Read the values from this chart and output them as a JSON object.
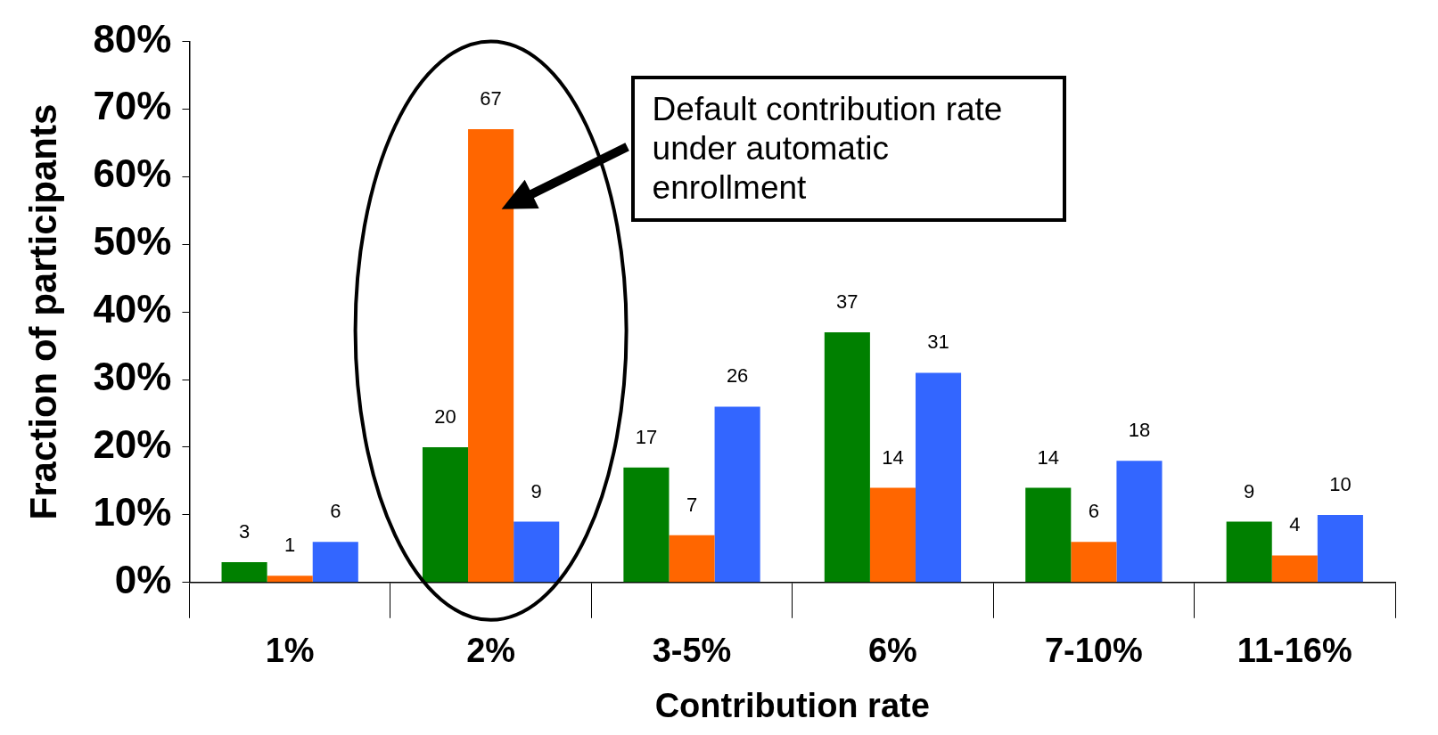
{
  "chart_data": {
    "type": "bar",
    "xlabel": "Contribution rate",
    "ylabel": "Fraction of participants",
    "categories": [
      "1%",
      "2%",
      "3-5%",
      "6%",
      "7-10%",
      "11-16%"
    ],
    "series": [
      {
        "color": "#008000",
        "values": [
          3,
          20,
          17,
          37,
          14,
          9
        ]
      },
      {
        "color": "#ff6600",
        "values": [
          1,
          67,
          7,
          14,
          6,
          4
        ]
      },
      {
        "color": "#3366ff",
        "values": [
          6,
          9,
          26,
          31,
          18,
          10
        ]
      }
    ],
    "ylim": [
      0,
      80
    ],
    "yticks": [
      {
        "value": 0,
        "label": "0%"
      },
      {
        "value": 10,
        "label": "10%"
      },
      {
        "value": 20,
        "label": "20%"
      },
      {
        "value": 30,
        "label": "30%"
      },
      {
        "value": 40,
        "label": "40%"
      },
      {
        "value": 50,
        "label": "50%"
      },
      {
        "value": 60,
        "label": "60%"
      },
      {
        "value": 70,
        "label": "70%"
      },
      {
        "value": 80,
        "label": "80%"
      }
    ],
    "data_labels": true,
    "grid": false,
    "legend": false,
    "annotations": [
      "Default contribution rate under automatic enrollment"
    ]
  }
}
